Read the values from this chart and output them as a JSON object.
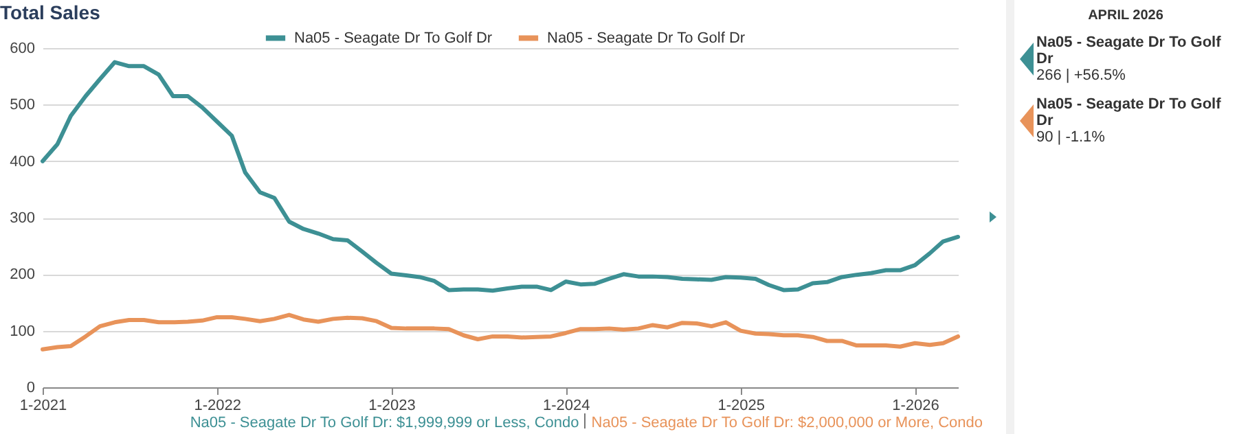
{
  "chart_data": {
    "type": "line",
    "title": "Total Sales",
    "x": [
      "2021-01",
      "2021-02",
      "2021-03",
      "2021-04",
      "2021-05",
      "2021-06",
      "2021-07",
      "2021-08",
      "2021-09",
      "2021-10",
      "2021-11",
      "2021-12",
      "2022-01",
      "2022-02",
      "2022-03",
      "2022-04",
      "2022-05",
      "2022-06",
      "2022-07",
      "2022-08",
      "2022-09",
      "2022-10",
      "2022-11",
      "2022-12",
      "2023-01",
      "2023-02",
      "2023-03",
      "2023-04",
      "2023-05",
      "2023-06",
      "2023-07",
      "2023-08",
      "2023-09",
      "2023-10",
      "2023-11",
      "2023-12",
      "2024-01",
      "2024-02",
      "2024-03",
      "2024-04",
      "2024-05",
      "2024-06",
      "2024-07",
      "2024-08",
      "2024-09",
      "2024-10",
      "2024-11",
      "2024-12",
      "2025-01",
      "2025-02",
      "2025-03",
      "2025-04",
      "2025-05",
      "2025-06",
      "2025-07",
      "2025-08",
      "2025-09",
      "2025-10",
      "2025-11",
      "2025-12",
      "2026-01",
      "2026-02",
      "2026-03",
      "2026-04"
    ],
    "series": [
      {
        "name": "Na05 - Seagate Dr To Golf Dr",
        "color": "#3d9094",
        "values": [
          400,
          430,
          480,
          515,
          545,
          575,
          568,
          568,
          553,
          515,
          515,
          495,
          470,
          445,
          380,
          345,
          335,
          293,
          280,
          272,
          262,
          260,
          240,
          220,
          201,
          198,
          195,
          188,
          172,
          173,
          173,
          171,
          175,
          178,
          178,
          172,
          187,
          182,
          183,
          192,
          200,
          196,
          196,
          195,
          192,
          191,
          190,
          195,
          194,
          192,
          181,
          172,
          173,
          184,
          186,
          195,
          199,
          202,
          207,
          207,
          216,
          237,
          258,
          266
        ]
      },
      {
        "name": "Na05 - Seagate Dr To Golf Dr",
        "color": "#e8935a",
        "values": [
          67,
          71,
          73,
          90,
          108,
          115,
          119,
          119,
          115,
          115,
          116,
          118,
          124,
          124,
          121,
          117,
          121,
          128,
          120,
          116,
          121,
          123,
          122,
          117,
          105,
          104,
          104,
          104,
          103,
          92,
          85,
          90,
          90,
          88,
          89,
          90,
          96,
          103,
          103,
          104,
          102,
          104,
          110,
          106,
          114,
          113,
          108,
          115,
          100,
          95,
          94,
          92,
          92,
          89,
          82,
          82,
          74,
          74,
          74,
          72,
          78,
          75,
          78,
          90
        ]
      }
    ],
    "xlim": [
      "2021-01",
      "2026-04"
    ],
    "xticks": [
      {
        "value": "2021-01",
        "label": "1-2021"
      },
      {
        "value": "2022-01",
        "label": "1-2022"
      },
      {
        "value": "2023-01",
        "label": "1-2023"
      },
      {
        "value": "2024-01",
        "label": "1-2024"
      },
      {
        "value": "2025-01",
        "label": "1-2025"
      },
      {
        "value": "2026-01",
        "label": "1-2026"
      }
    ],
    "ylim": [
      0,
      600
    ],
    "yticks": [
      0,
      100,
      200,
      300,
      400,
      500,
      600
    ],
    "grid": "y",
    "legend": "top",
    "marker": "none",
    "line_style": "solid",
    "annotations": [
      "Na05 - Seagate Dr To Golf Dr: $1,999,999 or Less, Condo",
      "Na05 - Seagate Dr To Golf Dr: $2,000,000 or More, Condo",
      "APRIL 2026",
      "Na05 - Seagate Dr To Golf Dr",
      "266 | +56.5%",
      "Na05 - Seagate Dr To Golf Dr",
      "90 | -1.1%"
    ]
  }
}
